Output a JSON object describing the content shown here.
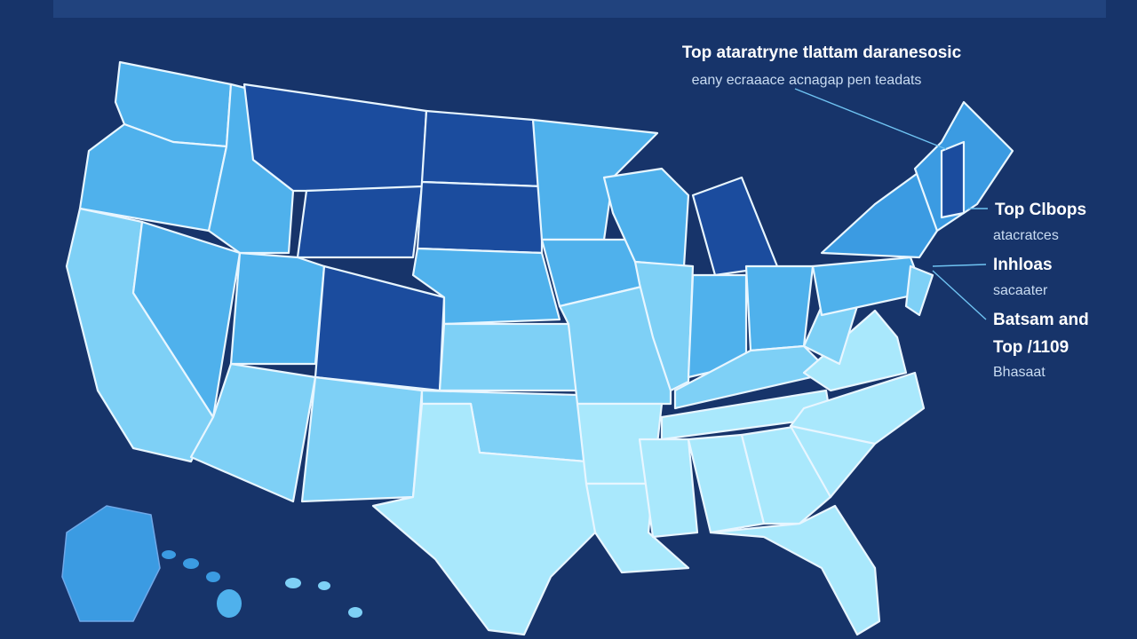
{
  "title": "Top ataratryne tlattam daranesosic",
  "subtitle": "eany ecraaace acnagap pen teadats",
  "callouts": [
    "Top Clbops",
    "atacratces",
    "Inhloas",
    "sacaater",
    "Batsam and",
    "Top /1109",
    "Bhasaat"
  ]
}
